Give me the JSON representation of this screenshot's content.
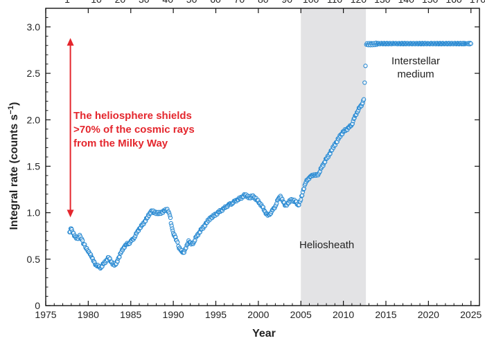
{
  "chart_data": {
    "type": "scatter",
    "title": "",
    "xlabel": "Year",
    "ylabel": "Integral rate (counts s",
    "ylabel_superscript": "−1",
    "ylabel_suffix": ")",
    "xlim": [
      1975,
      2026
    ],
    "ylim": [
      0,
      3.2
    ],
    "x_ticks": [
      "1975",
      "1980",
      "1985",
      "1990",
      "1995",
      "2000",
      "2005",
      "2010",
      "2015",
      "2020",
      "2025"
    ],
    "y_ticks": [
      "0",
      "0.5",
      "1.0",
      "1.5",
      "2.0",
      "2.5",
      "3.0"
    ],
    "top_axis_ticks": [
      "1",
      "10",
      "20",
      "30",
      "40",
      "50",
      "60",
      "70",
      "80",
      "90",
      "100",
      "110",
      "120",
      "130",
      "140",
      "150",
      "160",
      "170"
    ],
    "shaded_region": {
      "x": [
        2005,
        2012.65
      ],
      "label": "Heliosheath",
      "color": "#e3e3e5"
    },
    "arrow": {
      "x": 1977.9,
      "y": [
        0.95,
        2.88
      ],
      "color": "#e4262d"
    },
    "annotations": {
      "shield_lines": [
        "The heliosphere shields",
        ">70% of the cosmic rays",
        "from the Milky Way"
      ],
      "ism_lines": [
        "Interstellar",
        "medium"
      ],
      "heliosheath": "Heliosheath"
    },
    "marker_color": "#2a8ad2",
    "series": [
      {
        "values": [
          [
            1977.8,
            0.79
          ],
          [
            1978.0,
            0.83
          ],
          [
            1978.2,
            0.78
          ],
          [
            1978.5,
            0.74
          ],
          [
            1978.8,
            0.72
          ],
          [
            1979.0,
            0.76
          ],
          [
            1979.5,
            0.66
          ],
          [
            1980.0,
            0.58
          ],
          [
            1980.3,
            0.55
          ],
          [
            1980.6,
            0.48
          ],
          [
            1980.9,
            0.44
          ],
          [
            1981.2,
            0.42
          ],
          [
            1981.5,
            0.41
          ],
          [
            1981.8,
            0.45
          ],
          [
            1982.1,
            0.48
          ],
          [
            1982.4,
            0.52
          ],
          [
            1982.7,
            0.47
          ],
          [
            1983.0,
            0.44
          ],
          [
            1983.3,
            0.45
          ],
          [
            1983.6,
            0.52
          ],
          [
            1983.9,
            0.58
          ],
          [
            1984.2,
            0.63
          ],
          [
            1984.5,
            0.66
          ],
          [
            1984.8,
            0.67
          ],
          [
            1985.1,
            0.7
          ],
          [
            1985.4,
            0.73
          ],
          [
            1985.7,
            0.78
          ],
          [
            1986.0,
            0.83
          ],
          [
            1986.3,
            0.86
          ],
          [
            1986.6,
            0.9
          ],
          [
            1986.9,
            0.94
          ],
          [
            1987.2,
            0.99
          ],
          [
            1987.5,
            1.02
          ],
          [
            1987.8,
            1.0
          ],
          [
            1988.1,
            1.0
          ],
          [
            1988.4,
            0.99
          ],
          [
            1988.7,
            1.01
          ],
          [
            1989.0,
            1.02
          ],
          [
            1989.3,
            1.04
          ],
          [
            1989.6,
            0.97
          ],
          [
            1989.8,
            0.86
          ],
          [
            1990.0,
            0.78
          ],
          [
            1990.2,
            0.74
          ],
          [
            1990.4,
            0.7
          ],
          [
            1990.6,
            0.64
          ],
          [
            1990.9,
            0.59
          ],
          [
            1991.2,
            0.57
          ],
          [
            1991.5,
            0.62
          ],
          [
            1991.8,
            0.7
          ],
          [
            1992.1,
            0.66
          ],
          [
            1992.4,
            0.68
          ],
          [
            1992.7,
            0.74
          ],
          [
            1993.0,
            0.78
          ],
          [
            1993.3,
            0.82
          ],
          [
            1993.6,
            0.85
          ],
          [
            1993.9,
            0.89
          ],
          [
            1994.2,
            0.93
          ],
          [
            1994.5,
            0.95
          ],
          [
            1994.8,
            0.97
          ],
          [
            1995.1,
            0.99
          ],
          [
            1995.4,
            1.01
          ],
          [
            1995.7,
            1.03
          ],
          [
            1996.0,
            1.05
          ],
          [
            1996.3,
            1.07
          ],
          [
            1996.6,
            1.09
          ],
          [
            1996.9,
            1.1
          ],
          [
            1997.2,
            1.12
          ],
          [
            1997.5,
            1.14
          ],
          [
            1997.8,
            1.15
          ],
          [
            1998.1,
            1.17
          ],
          [
            1998.4,
            1.19
          ],
          [
            1998.7,
            1.18
          ],
          [
            1999.0,
            1.16
          ],
          [
            1999.3,
            1.18
          ],
          [
            1999.6,
            1.16
          ],
          [
            1999.9,
            1.13
          ],
          [
            2000.2,
            1.1
          ],
          [
            2000.5,
            1.06
          ],
          [
            2000.8,
            1.01
          ],
          [
            2001.1,
            0.97
          ],
          [
            2001.4,
            0.99
          ],
          [
            2001.7,
            1.03
          ],
          [
            2002.0,
            1.07
          ],
          [
            2002.3,
            1.14
          ],
          [
            2002.6,
            1.18
          ],
          [
            2002.9,
            1.12
          ],
          [
            2003.2,
            1.08
          ],
          [
            2003.5,
            1.1
          ],
          [
            2003.8,
            1.14
          ],
          [
            2004.1,
            1.13
          ],
          [
            2004.4,
            1.12
          ],
          [
            2004.7,
            1.08
          ],
          [
            2005.0,
            1.14
          ],
          [
            2005.3,
            1.25
          ],
          [
            2005.6,
            1.33
          ],
          [
            2005.9,
            1.37
          ],
          [
            2006.2,
            1.39
          ],
          [
            2006.5,
            1.41
          ],
          [
            2006.8,
            1.4
          ],
          [
            2007.1,
            1.42
          ],
          [
            2007.4,
            1.48
          ],
          [
            2007.7,
            1.53
          ],
          [
            2008.0,
            1.58
          ],
          [
            2008.3,
            1.62
          ],
          [
            2008.6,
            1.67
          ],
          [
            2008.9,
            1.72
          ],
          [
            2009.2,
            1.76
          ],
          [
            2009.5,
            1.81
          ],
          [
            2009.8,
            1.85
          ],
          [
            2010.1,
            1.88
          ],
          [
            2010.4,
            1.9
          ],
          [
            2010.7,
            1.92
          ],
          [
            2011.0,
            1.95
          ],
          [
            2011.3,
            2.02
          ],
          [
            2011.6,
            2.08
          ],
          [
            2011.9,
            2.13
          ],
          [
            2012.2,
            2.17
          ],
          [
            2012.4,
            2.22
          ],
          [
            2012.5,
            2.4
          ],
          [
            2012.6,
            2.58
          ],
          [
            2012.7,
            2.81
          ],
          [
            2014.0,
            2.82
          ],
          [
            2016.0,
            2.82
          ],
          [
            2018.0,
            2.82
          ],
          [
            2020.0,
            2.82
          ],
          [
            2022.0,
            2.82
          ],
          [
            2024.0,
            2.82
          ],
          [
            2025.0,
            2.82
          ]
        ]
      }
    ]
  }
}
